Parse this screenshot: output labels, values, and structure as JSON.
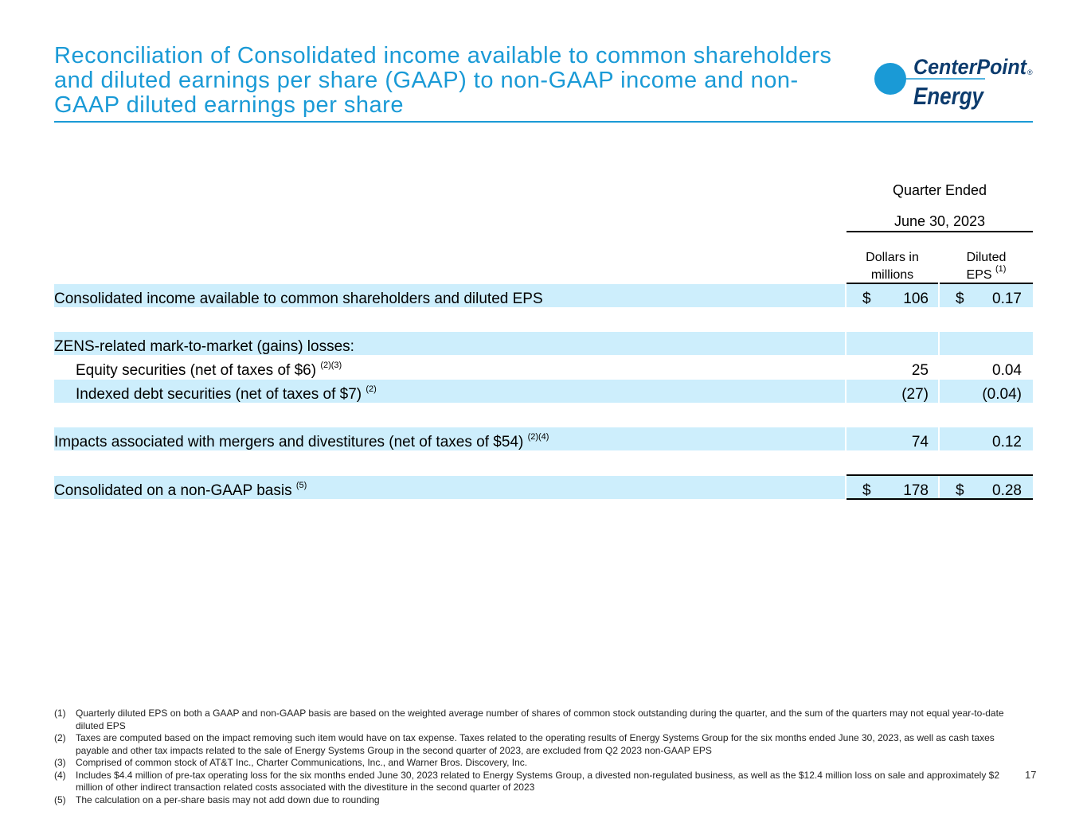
{
  "title": "Reconciliation of Consolidated income available to common shareholders and diluted earnings per share (GAAP) to non-GAAP income and non-GAAP diluted earnings per share",
  "logo": {
    "line1": "CenterPoint",
    "line2": "Energy",
    "mark": "®",
    "color": "#1a9ad6"
  },
  "table": {
    "period_header": "Quarter Ended",
    "period_date": "June 30, 2023",
    "col1_header": [
      "Dollars in",
      "millions"
    ],
    "col2_header": "Diluted EPS",
    "col2_header_note": "(1)",
    "rows": [
      {
        "label": "Consolidated income available to common shareholders and diluted EPS",
        "note": "",
        "dollar1": "$",
        "val1": "106",
        "dollar2": "$",
        "val2": "0.17"
      },
      {
        "label": "ZENS-related mark-to-market (gains) losses:",
        "note": "",
        "dollar1": "",
        "val1": "",
        "dollar2": "",
        "val2": ""
      },
      {
        "label": "Equity securities (net of taxes of $6)",
        "note": "(2)(3)",
        "dollar1": "",
        "val1": "25",
        "dollar2": "",
        "val2": "0.04"
      },
      {
        "label": "Indexed debt securities (net of taxes of $7)",
        "note": "(2)",
        "dollar1": "",
        "val1": "(27)",
        "dollar2": "",
        "val2": "(0.04)"
      },
      {
        "label": "Impacts associated with mergers and divestitures (net of taxes of $54)",
        "note": "(2)(4)",
        "dollar1": "",
        "val1": "74",
        "dollar2": "",
        "val2": "0.12"
      },
      {
        "label": "Consolidated on a non-GAAP basis",
        "note": "(5)",
        "dollar1": "$",
        "val1": "178",
        "dollar2": "$",
        "val2": "0.28"
      }
    ]
  },
  "footnotes": [
    {
      "mark": "(1)",
      "text": "Quarterly diluted EPS on both a GAAP and non-GAAP basis are based on the weighted average number of shares of common stock outstanding during the quarter, and the sum of the quarters may not equal year-to-date diluted EPS"
    },
    {
      "mark": "(2)",
      "text": "Taxes are computed based on the impact removing such item would have on tax expense. Taxes related to the operating results of Energy Systems Group for the six months ended June 30, 2023, as well as cash taxes payable and other tax impacts related to the sale of Energy Systems Group in the second quarter of 2023, are excluded from Q2 2023 non-GAAP EPS"
    },
    {
      "mark": "(3)",
      "text": "Comprised of common stock of AT&T Inc., Charter Communications, Inc., and Warner Bros. Discovery, Inc."
    },
    {
      "mark": "(4)",
      "text": "Includes $4.4 million of pre-tax operating loss for the six months ended June 30, 2023 related to Energy Systems Group, a divested non-regulated business, as well as the $12.4 million loss on sale and approximately $2 million of other indirect transaction related costs associated with the divestiture in the second quarter of 2023"
    },
    {
      "mark": "(5)",
      "text": "The calculation on a per-share basis may not add down due to rounding"
    }
  ],
  "page_number": "17"
}
